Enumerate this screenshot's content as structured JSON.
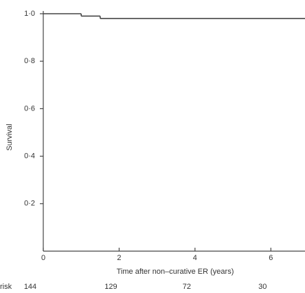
{
  "chart_data": {
    "type": "line",
    "step": true,
    "y_label": "Survival",
    "x_label": "Time after non–curative ER (years)",
    "x": [
      0,
      1,
      1.5,
      6.9
    ],
    "values": [
      1.0,
      0.99,
      0.98,
      0.98
    ],
    "color": "#444444",
    "xlim": [
      0,
      6.9
    ],
    "ylim": [
      0,
      1
    ],
    "xticks": [
      0,
      2,
      4,
      6
    ],
    "yticks": [
      {
        "value": 0.2,
        "label": "0·2"
      },
      {
        "value": 0.4,
        "label": "0·4"
      },
      {
        "value": 0.6,
        "label": "0·6"
      },
      {
        "value": 0.8,
        "label": "0·8"
      },
      {
        "value": 1,
        "label": "1·0"
      }
    ],
    "at_risk_label": "risk",
    "at_risk": [
      144,
      129,
      72,
      30
    ]
  }
}
